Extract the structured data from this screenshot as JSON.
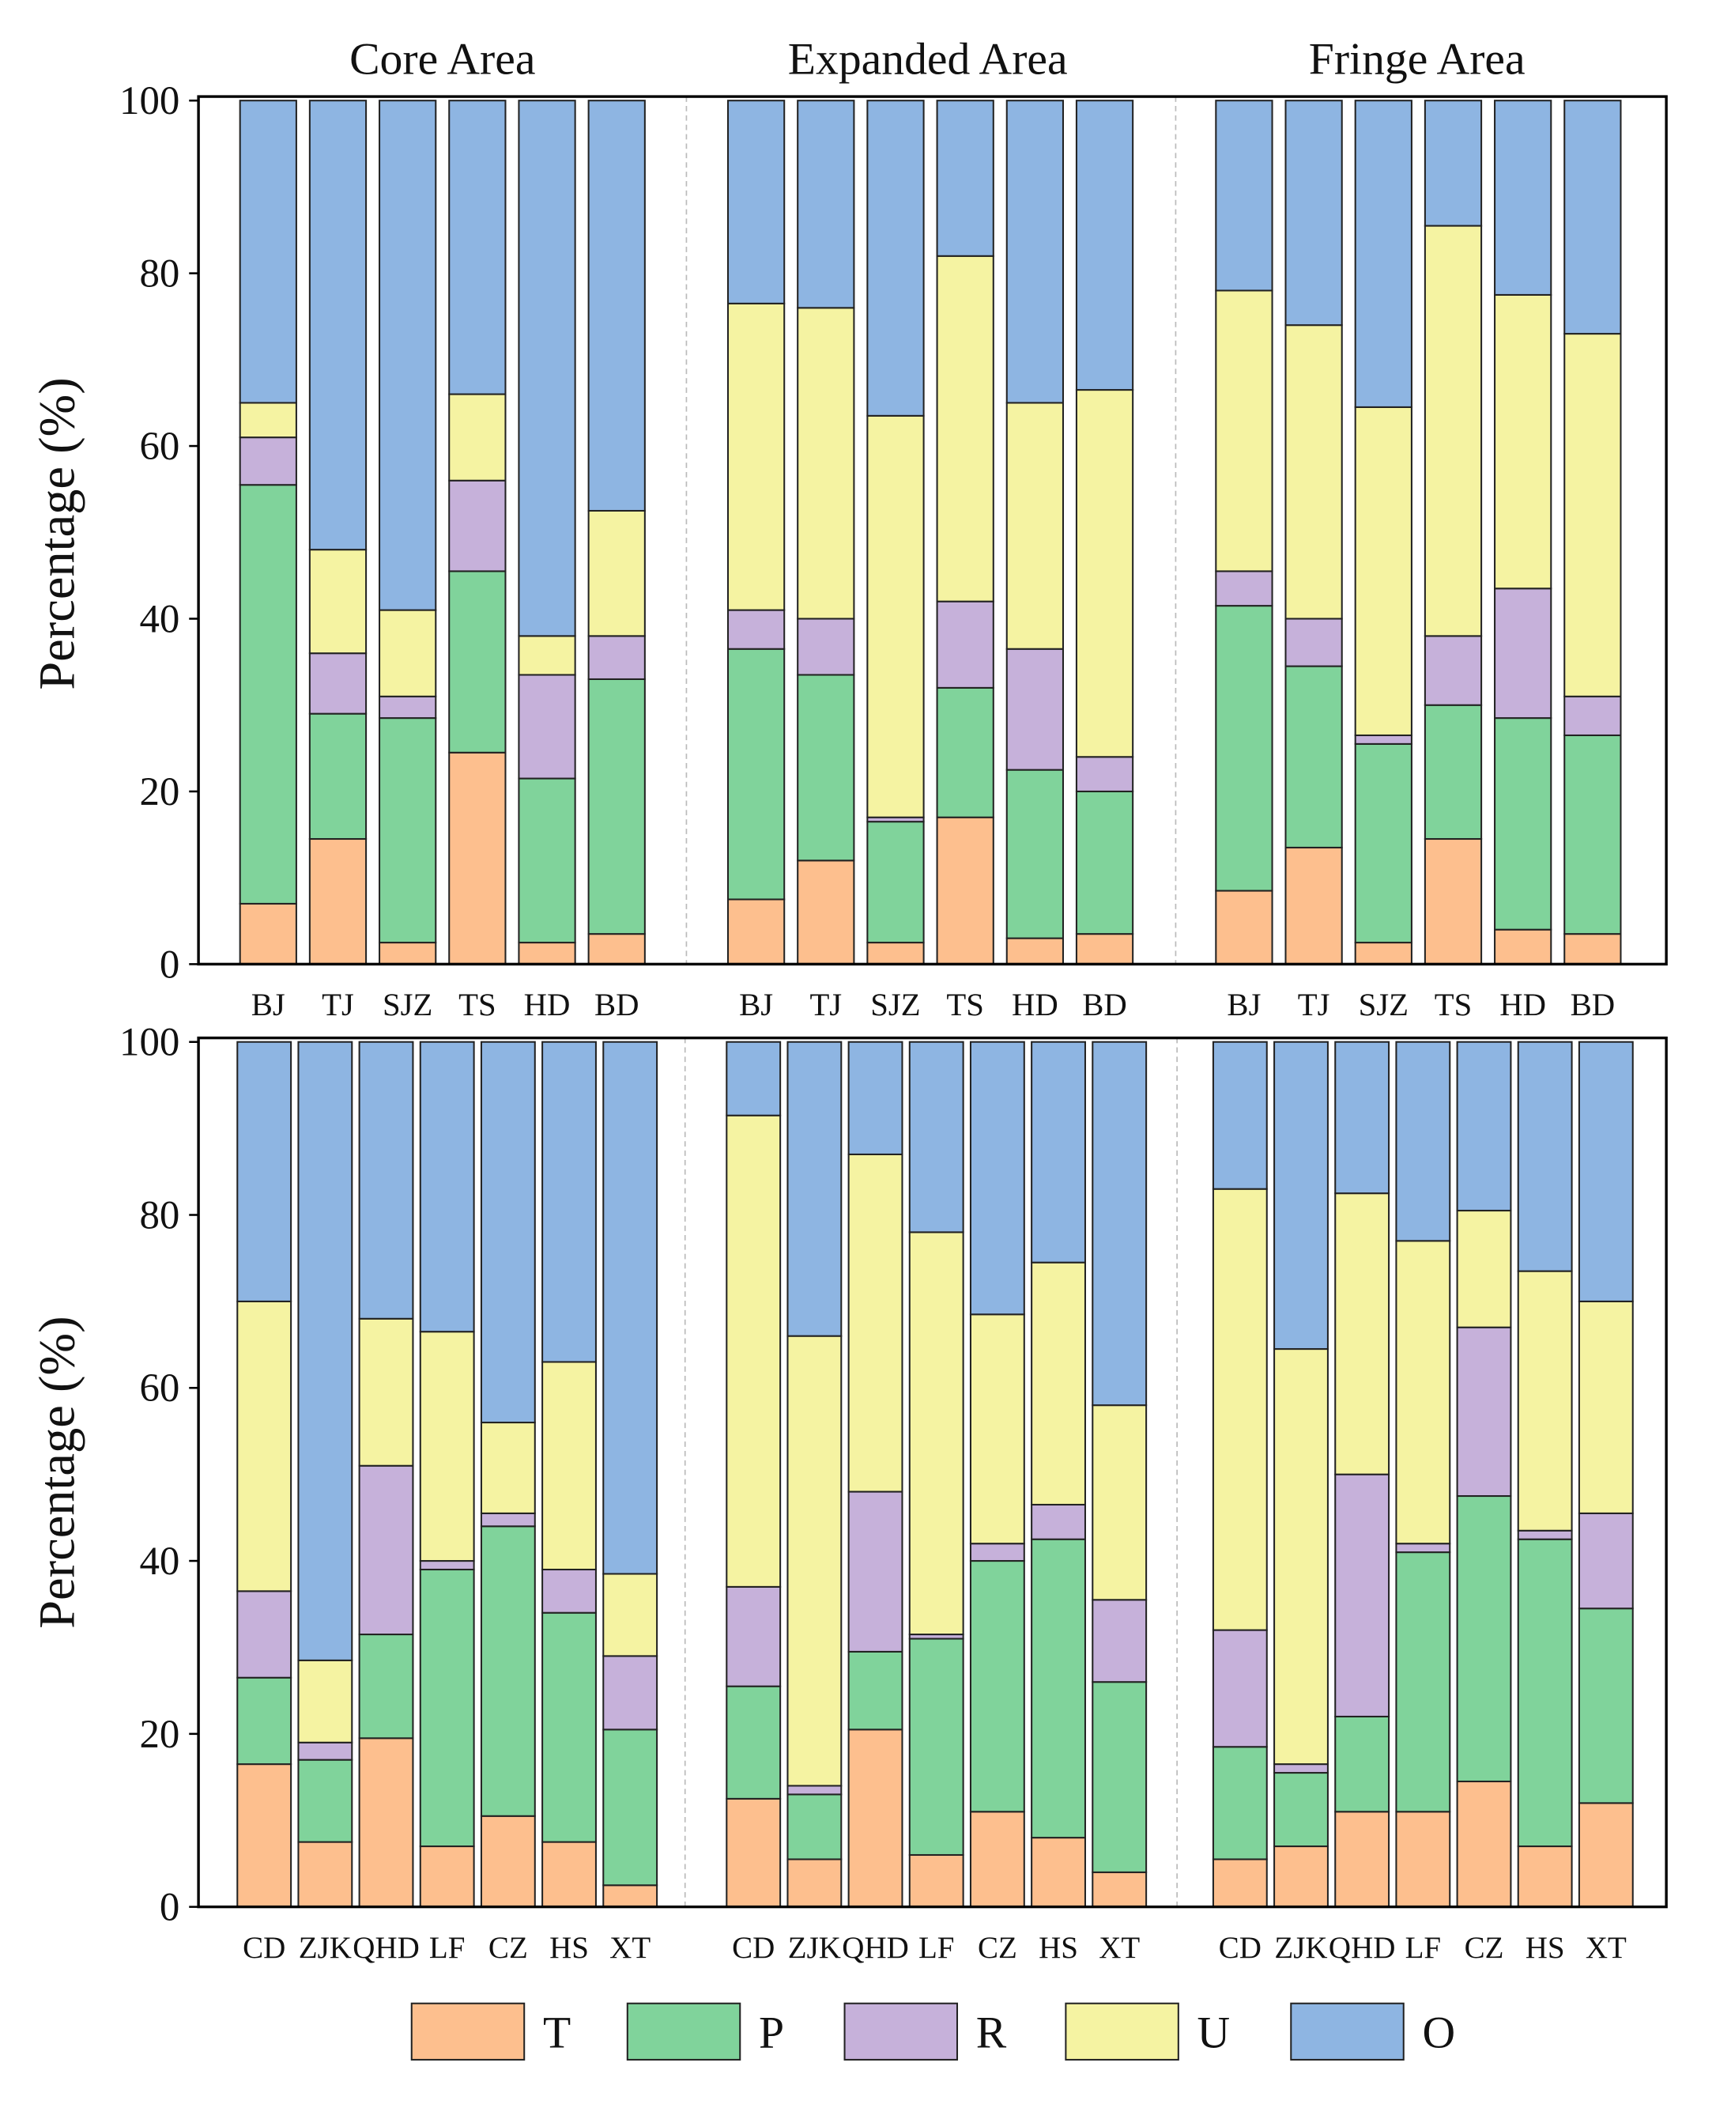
{
  "chart_data": {
    "type": "bar",
    "stacked": true,
    "ylabel": "Percentage (%)",
    "ylim": [
      0,
      100
    ],
    "yticks": [
      0,
      20,
      40,
      60,
      80,
      100
    ],
    "area_titles": [
      "Core Area",
      "Expanded Area",
      "Fringe Area"
    ],
    "legend": {
      "placement": "bottom-center",
      "entries": [
        {
          "name": "T",
          "color": "#FDBF8E"
        },
        {
          "name": "P",
          "color": "#80D39B"
        },
        {
          "name": "R",
          "color": "#C6B1DA"
        },
        {
          "name": "U",
          "color": "#F5F3A2"
        },
        {
          "name": "O",
          "color": "#8EB5E2"
        }
      ]
    },
    "panels": [
      {
        "categories": [
          "BJ",
          "TJ",
          "SJZ",
          "TS",
          "HD",
          "BD"
        ],
        "areas": [
          {
            "area": "Core Area",
            "series": {
              "T": [
                7,
                14.5,
                2.5,
                24.5,
                2.5,
                3.5
              ],
              "P": [
                48.5,
                14.5,
                26,
                21,
                19,
                29.5
              ],
              "R": [
                5.5,
                7,
                2.5,
                10.5,
                12,
                5
              ],
              "U": [
                4,
                12,
                10,
                10,
                4.5,
                14.5
              ],
              "O": [
                35,
                52,
                59,
                34,
                62,
                47.5
              ]
            }
          },
          {
            "area": "Expanded Area",
            "series": {
              "T": [
                7.5,
                12,
                2.5,
                17,
                3,
                3.5
              ],
              "P": [
                29,
                21.5,
                14,
                15,
                19.5,
                16.5
              ],
              "R": [
                4.5,
                6.5,
                0.5,
                10,
                14,
                4
              ],
              "U": [
                35.5,
                36,
                46.5,
                40,
                28.5,
                42.5
              ],
              "O": [
                23.5,
                24,
                36.5,
                18,
                35,
                33.5
              ]
            }
          },
          {
            "area": "Fringe Area",
            "series": {
              "T": [
                8.5,
                13.5,
                2.5,
                14.5,
                4,
                3.5
              ],
              "P": [
                33,
                21,
                23,
                15.5,
                24.5,
                23
              ],
              "R": [
                4,
                5.5,
                1,
                8,
                15,
                4.5
              ],
              "U": [
                32.5,
                34,
                38,
                47.5,
                34,
                42
              ],
              "O": [
                22,
                26,
                35.5,
                14.5,
                22.5,
                27
              ]
            }
          }
        ]
      },
      {
        "categories": [
          "CD",
          "ZJK",
          "QHD",
          "LF",
          "CZ",
          "HS",
          "XT"
        ],
        "areas": [
          {
            "area": "Core Area",
            "series": {
              "T": [
                16.5,
                7.5,
                19.5,
                7,
                10.5,
                7.5,
                2.5
              ],
              "P": [
                10,
                9.5,
                12,
                32,
                33.5,
                26.5,
                18
              ],
              "R": [
                10,
                2,
                19.5,
                1,
                1.5,
                5,
                8.5
              ],
              "U": [
                33.5,
                9.5,
                17,
                26.5,
                10.5,
                24,
                9.5
              ],
              "O": [
                30,
                71.5,
                32,
                33.5,
                44,
                37,
                61.5
              ]
            }
          },
          {
            "area": "Expanded Area",
            "series": {
              "T": [
                12.5,
                5.5,
                20.5,
                6,
                11,
                8,
                4
              ],
              "P": [
                13,
                7.5,
                9,
                25,
                29,
                34.5,
                22
              ],
              "R": [
                11.5,
                1,
                18.5,
                0.5,
                2,
                4,
                9.5
              ],
              "U": [
                54.5,
                52,
                39,
                46.5,
                26.5,
                28,
                22.5
              ],
              "O": [
                8.5,
                34,
                13,
                22,
                31.5,
                25.5,
                42
              ]
            }
          },
          {
            "area": "Fringe Area",
            "series": {
              "T": [
                5.5,
                7,
                11,
                11,
                14.5,
                7,
                12
              ],
              "P": [
                13,
                8.5,
                11,
                30,
                33,
                35.5,
                22.5
              ],
              "R": [
                13.5,
                1,
                28,
                1,
                19.5,
                1,
                11
              ],
              "U": [
                51,
                48,
                32.5,
                35,
                13.5,
                30,
                24.5
              ],
              "O": [
                17,
                35.5,
                17.5,
                23,
                19.5,
                26.5,
                30
              ]
            }
          }
        ]
      }
    ]
  }
}
